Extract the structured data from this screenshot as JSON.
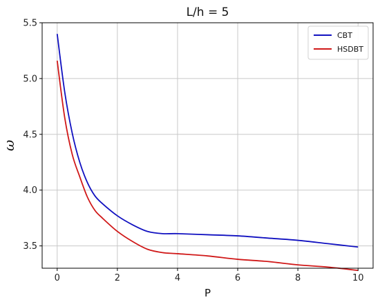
{
  "chart_data": {
    "type": "line",
    "title": "L/h = 5",
    "xlabel": "P",
    "ylabel": "ω",
    "xlim": [
      -0.5,
      10.5
    ],
    "ylim": [
      3.3,
      5.5
    ],
    "xticks": [
      0,
      2,
      4,
      6,
      8,
      10
    ],
    "xtick_labels": [
      "0",
      "2",
      "4",
      "6",
      "8",
      "10"
    ],
    "yticks": [
      3.5,
      4.0,
      4.5,
      5.0,
      5.5
    ],
    "ytick_labels": [
      "3.5",
      "4.0",
      "4.5",
      "5.0",
      "5.5"
    ],
    "grid": true,
    "legend_position": "top-right",
    "series": [
      {
        "name": "CBT",
        "color": "#1010c0",
        "x": [
          0,
          0.25,
          0.5,
          0.75,
          1.0,
          1.25,
          1.5,
          2.0,
          2.5,
          3.0,
          3.5,
          4.0,
          5.0,
          6.0,
          7.0,
          8.0,
          9.0,
          10.0
        ],
        "y": [
          5.4,
          4.88,
          4.51,
          4.25,
          4.07,
          3.95,
          3.88,
          3.77,
          3.69,
          3.63,
          3.61,
          3.61,
          3.6,
          3.59,
          3.57,
          3.55,
          3.52,
          3.49
        ]
      },
      {
        "name": "HSDBT",
        "color": "#d01818",
        "x": [
          0,
          0.25,
          0.5,
          0.75,
          1.0,
          1.25,
          1.5,
          2.0,
          2.5,
          3.0,
          3.5,
          4.0,
          5.0,
          6.0,
          7.0,
          8.0,
          9.0,
          10.0
        ],
        "y": [
          5.16,
          4.65,
          4.32,
          4.12,
          3.94,
          3.82,
          3.75,
          3.63,
          3.54,
          3.47,
          3.44,
          3.43,
          3.41,
          3.38,
          3.36,
          3.33,
          3.31,
          3.28
        ]
      }
    ]
  }
}
